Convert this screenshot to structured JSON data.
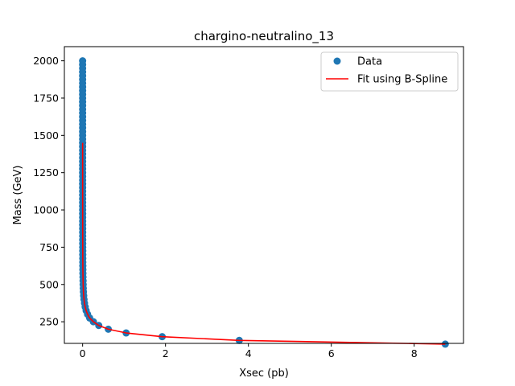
{
  "chart_data": {
    "type": "scatter",
    "title": "chargino-neutralino_13",
    "xlabel": "Xsec (pb)",
    "ylabel": "Mass (GeV)",
    "xlim": [
      -0.44,
      9.19
    ],
    "ylim": [
      105,
      2095
    ],
    "xticks": [
      "0",
      "2",
      "4",
      "6",
      "8"
    ],
    "xtick_values": [
      0,
      2,
      4,
      6,
      8
    ],
    "yticks": [
      "250",
      "500",
      "750",
      "1000",
      "1250",
      "1500",
      "1750",
      "2000"
    ],
    "ytick_values": [
      250,
      500,
      750,
      1000,
      1250,
      1500,
      1750,
      2000
    ],
    "grid": false,
    "legend": {
      "position": "top-right",
      "entries": [
        "Data",
        "Fit using B-Spline"
      ]
    },
    "colors": {
      "data": "#1f77b4",
      "fit": "#ff0000"
    },
    "data_points": [
      [
        8.75,
        100
      ],
      [
        3.78,
        125
      ],
      [
        1.92,
        150
      ],
      [
        1.05,
        175
      ],
      [
        0.62,
        200
      ],
      [
        0.39,
        225
      ],
      [
        0.26,
        250
      ],
      [
        0.17,
        275
      ],
      [
        0.12,
        300
      ],
      [
        0.085,
        325
      ],
      [
        0.062,
        350
      ],
      [
        0.046,
        375
      ],
      [
        0.034,
        400
      ],
      [
        0.026,
        425
      ],
      [
        0.02,
        450
      ],
      [
        0.016,
        475
      ],
      [
        0.013,
        500
      ],
      [
        0.011,
        525
      ],
      [
        0.009,
        550
      ],
      [
        0.007,
        575
      ],
      [
        0.006,
        600
      ],
      [
        0.005,
        625
      ],
      [
        0.0045,
        650
      ],
      [
        0.004,
        675
      ],
      [
        0.0035,
        700
      ],
      [
        0.003,
        725
      ],
      [
        0.0026,
        750
      ],
      [
        0.0023,
        775
      ],
      [
        0.002,
        800
      ],
      [
        0.0018,
        825
      ],
      [
        0.0016,
        850
      ],
      [
        0.0014,
        875
      ],
      [
        0.0012,
        900
      ],
      [
        0.0011,
        925
      ],
      [
        0.001,
        950
      ],
      [
        0.0009,
        975
      ],
      [
        0.0008,
        1000
      ],
      [
        0.0007,
        1025
      ],
      [
        0.0006,
        1050
      ],
      [
        0.0006,
        1075
      ],
      [
        0.0005,
        1100
      ],
      [
        0.0005,
        1125
      ],
      [
        0.0004,
        1150
      ],
      [
        0.0004,
        1175
      ],
      [
        0.0003,
        1200
      ],
      [
        0.0003,
        1225
      ],
      [
        0.0003,
        1250
      ],
      [
        0.0002,
        1275
      ],
      [
        0.0002,
        1300
      ],
      [
        0.0002,
        1325
      ],
      [
        0.0002,
        1350
      ],
      [
        0.0001,
        1375
      ],
      [
        0.0001,
        1400
      ],
      [
        0.0001,
        1425
      ],
      [
        0.0001,
        1450
      ],
      [
        0.0001,
        1475
      ],
      [
        0.0001,
        1500
      ],
      [
        0.0001,
        1525
      ],
      [
        0.0001,
        1550
      ],
      [
        0.0001,
        1575
      ],
      [
        0.0,
        1600
      ],
      [
        0.0,
        1625
      ],
      [
        0.0,
        1650
      ],
      [
        0.0,
        1675
      ],
      [
        0.0,
        1700
      ],
      [
        0.0,
        1725
      ],
      [
        0.0,
        1750
      ],
      [
        0.0,
        1775
      ],
      [
        0.0,
        1800
      ],
      [
        0.0,
        1825
      ],
      [
        0.0,
        1850
      ],
      [
        0.0,
        1875
      ],
      [
        0.0,
        1900
      ],
      [
        0.0,
        1925
      ],
      [
        0.0,
        1950
      ],
      [
        0.0,
        1975
      ],
      [
        0.0,
        2000
      ]
    ],
    "fit_line": [
      [
        8.75,
        100
      ],
      [
        3.78,
        125
      ],
      [
        1.92,
        150
      ],
      [
        1.05,
        175
      ],
      [
        0.62,
        200
      ],
      [
        0.39,
        225
      ],
      [
        0.26,
        250
      ],
      [
        0.17,
        275
      ],
      [
        0.12,
        300
      ],
      [
        0.085,
        325
      ],
      [
        0.062,
        350
      ],
      [
        0.046,
        375
      ],
      [
        0.034,
        400
      ],
      [
        0.026,
        425
      ],
      [
        0.02,
        450
      ],
      [
        0.013,
        500
      ],
      [
        0.009,
        550
      ],
      [
        0.006,
        600
      ],
      [
        0.004,
        675
      ],
      [
        0.002,
        800
      ],
      [
        0.001,
        950
      ],
      [
        0.0005,
        1100
      ],
      [
        0.0002,
        1300
      ],
      [
        0.0001,
        1450
      ]
    ]
  }
}
